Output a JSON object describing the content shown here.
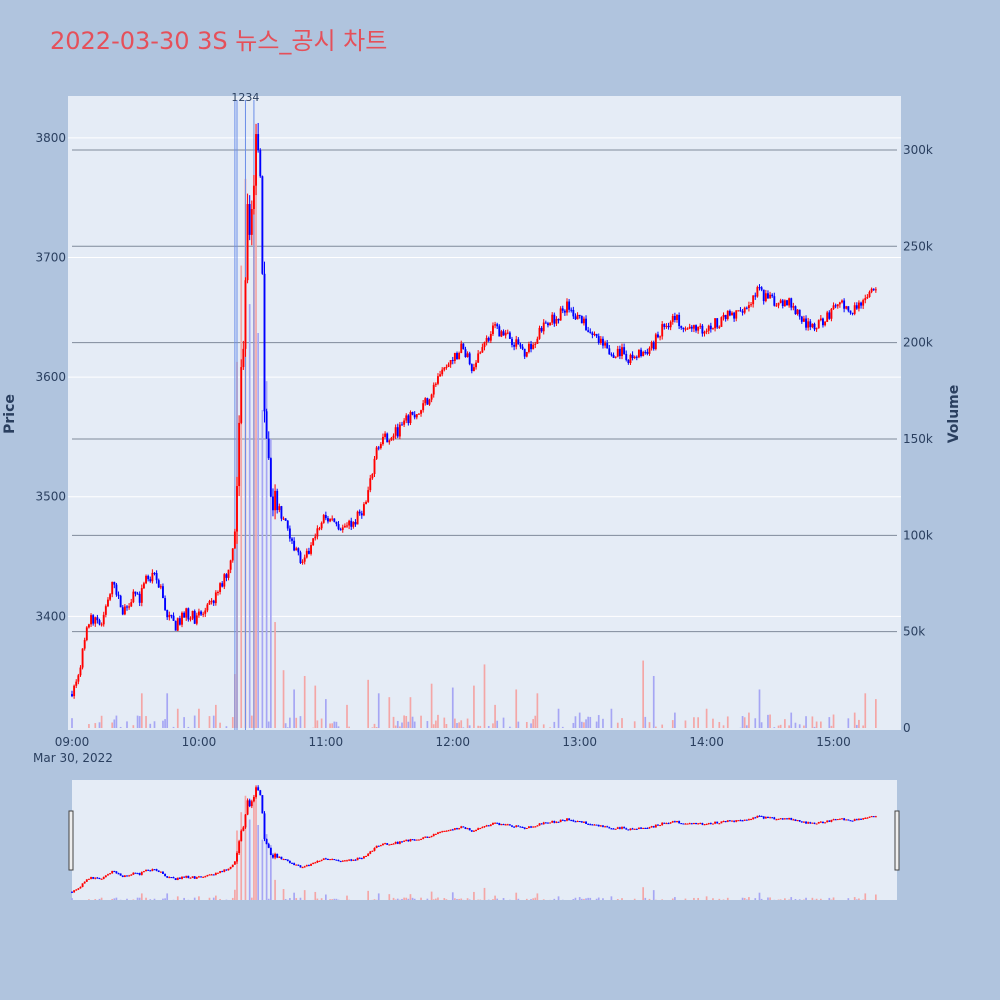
{
  "title": "2022-03-30 3S 뉴스_공시 차트",
  "colors": {
    "background": "#b0c4de",
    "plot_bg": "#e5ecf6",
    "up": "#ff0000",
    "down": "#0000ff",
    "up_volume": "#f4a6a6",
    "down_volume": "#a6a6f4",
    "title": "#e5505a",
    "news_line": "#6b8ee8"
  },
  "chart_data": {
    "type": "candlestick",
    "title": "2022-03-30 3S 뉴스_공시 차트",
    "ylabel": "Price",
    "y2label": "Volume",
    "date_label": "Mar 30, 2022",
    "x_ticks": [
      "09:00",
      "10:00",
      "11:00",
      "12:00",
      "13:00",
      "14:00",
      "15:00"
    ],
    "x_range": [
      "09:00",
      "15:30"
    ],
    "price_ticks": [
      3400,
      3500,
      3600,
      3700,
      3800
    ],
    "price_range": [
      3305,
      3835
    ],
    "volume_ticks": [
      "0",
      "50k",
      "100k",
      "150k",
      "200k",
      "250k",
      "300k"
    ],
    "volume_tick_values": [
      0,
      50000,
      100000,
      150000,
      200000,
      250000,
      300000
    ],
    "volume_range": [
      0,
      328000
    ],
    "news_markers": [
      {
        "label": "1",
        "time": "10:17"
      },
      {
        "label": "2",
        "time": "10:18"
      },
      {
        "label": "3",
        "time": "10:22"
      },
      {
        "label": "4",
        "time": "10:26"
      }
    ],
    "price_path": [
      [
        "09:00",
        3335
      ],
      [
        "09:03",
        3345
      ],
      [
        "09:06",
        3370
      ],
      [
        "09:09",
        3395
      ],
      [
        "09:12",
        3400
      ],
      [
        "09:15",
        3395
      ],
      [
        "09:18",
        3415
      ],
      [
        "09:21",
        3430
      ],
      [
        "09:24",
        3405
      ],
      [
        "09:27",
        3410
      ],
      [
        "09:30",
        3420
      ],
      [
        "09:33",
        3415
      ],
      [
        "09:36",
        3430
      ],
      [
        "09:40",
        3432
      ],
      [
        "09:43",
        3425
      ],
      [
        "09:46",
        3400
      ],
      [
        "09:50",
        3392
      ],
      [
        "09:55",
        3402
      ],
      [
        "10:00",
        3398
      ],
      [
        "10:05",
        3405
      ],
      [
        "10:10",
        3420
      ],
      [
        "10:15",
        3440
      ],
      [
        "10:18",
        3470
      ],
      [
        "10:20",
        3560
      ],
      [
        "10:22",
        3640
      ],
      [
        "10:24",
        3740
      ],
      [
        "10:26",
        3730
      ],
      [
        "10:28",
        3790
      ],
      [
        "10:30",
        3760
      ],
      [
        "10:32",
        3580
      ],
      [
        "10:35",
        3510
      ],
      [
        "10:38",
        3490
      ],
      [
        "10:42",
        3480
      ],
      [
        "10:46",
        3460
      ],
      [
        "10:50",
        3442
      ],
      [
        "10:55",
        3462
      ],
      [
        "11:00",
        3482
      ],
      [
        "11:05",
        3480
      ],
      [
        "11:10",
        3472
      ],
      [
        "11:15",
        3480
      ],
      [
        "11:20",
        3495
      ],
      [
        "11:25",
        3540
      ],
      [
        "11:30",
        3550
      ],
      [
        "11:35",
        3555
      ],
      [
        "11:40",
        3565
      ],
      [
        "11:45",
        3570
      ],
      [
        "11:50",
        3585
      ],
      [
        "11:55",
        3600
      ],
      [
        "12:00",
        3610
      ],
      [
        "12:05",
        3625
      ],
      [
        "12:10",
        3610
      ],
      [
        "12:15",
        3625
      ],
      [
        "12:20",
        3640
      ],
      [
        "12:25",
        3638
      ],
      [
        "12:30",
        3630
      ],
      [
        "12:35",
        3622
      ],
      [
        "12:40",
        3632
      ],
      [
        "12:45",
        3645
      ],
      [
        "12:50",
        3650
      ],
      [
        "12:55",
        3660
      ],
      [
        "13:00",
        3650
      ],
      [
        "13:05",
        3640
      ],
      [
        "13:10",
        3630
      ],
      [
        "13:15",
        3620
      ],
      [
        "13:20",
        3622
      ],
      [
        "13:25",
        3615
      ],
      [
        "13:30",
        3620
      ],
      [
        "13:35",
        3625
      ],
      [
        "13:40",
        3640
      ],
      [
        "13:45",
        3650
      ],
      [
        "13:50",
        3645
      ],
      [
        "13:55",
        3640
      ],
      [
        "14:00",
        3640
      ],
      [
        "14:05",
        3645
      ],
      [
        "14:10",
        3650
      ],
      [
        "14:15",
        3652
      ],
      [
        "14:20",
        3660
      ],
      [
        "14:25",
        3672
      ],
      [
        "14:30",
        3665
      ],
      [
        "14:35",
        3660
      ],
      [
        "14:40",
        3665
      ],
      [
        "14:45",
        3650
      ],
      [
        "14:50",
        3640
      ],
      [
        "14:55",
        3645
      ],
      [
        "15:00",
        3655
      ],
      [
        "15:05",
        3660
      ],
      [
        "15:10",
        3655
      ],
      [
        "15:15",
        3665
      ],
      [
        "15:20",
        3670
      ]
    ],
    "volume_spikes": [
      [
        "09:33",
        18000
      ],
      [
        "09:45",
        18000
      ],
      [
        "09:50",
        10000
      ],
      [
        "10:00",
        10000
      ],
      [
        "10:08",
        12000
      ],
      [
        "10:17",
        28000
      ],
      [
        "10:18",
        190000
      ],
      [
        "10:20",
        240000
      ],
      [
        "10:22",
        285000
      ],
      [
        "10:24",
        220000
      ],
      [
        "10:26",
        275000
      ],
      [
        "10:27",
        305000
      ],
      [
        "10:28",
        205000
      ],
      [
        "10:30",
        165000
      ],
      [
        "10:32",
        180000
      ],
      [
        "10:34",
        150000
      ],
      [
        "10:36",
        55000
      ],
      [
        "10:40",
        30000
      ],
      [
        "10:45",
        20000
      ],
      [
        "10:50",
        27000
      ],
      [
        "10:55",
        22000
      ],
      [
        "11:00",
        15000
      ],
      [
        "11:10",
        12000
      ],
      [
        "11:20",
        25000
      ],
      [
        "11:25",
        18000
      ],
      [
        "11:30",
        16000
      ],
      [
        "11:40",
        16000
      ],
      [
        "11:50",
        23000
      ],
      [
        "12:00",
        21000
      ],
      [
        "12:10",
        22000
      ],
      [
        "12:15",
        33000
      ],
      [
        "12:20",
        12000
      ],
      [
        "12:30",
        20000
      ],
      [
        "12:40",
        18000
      ],
      [
        "12:50",
        10000
      ],
      [
        "13:00",
        8000
      ],
      [
        "13:15",
        10000
      ],
      [
        "13:30",
        35000
      ],
      [
        "13:35",
        27000
      ],
      [
        "13:45",
        8000
      ],
      [
        "14:00",
        10000
      ],
      [
        "14:10",
        6000
      ],
      [
        "14:20",
        8000
      ],
      [
        "14:25",
        20000
      ],
      [
        "14:30",
        7000
      ],
      [
        "14:40",
        8000
      ],
      [
        "14:50",
        6000
      ],
      [
        "15:00",
        7000
      ],
      [
        "15:10",
        8000
      ],
      [
        "15:15",
        18000
      ],
      [
        "15:20",
        15000
      ],
      [
        "15:30",
        47000
      ]
    ],
    "grid": true,
    "range_slider": true
  }
}
